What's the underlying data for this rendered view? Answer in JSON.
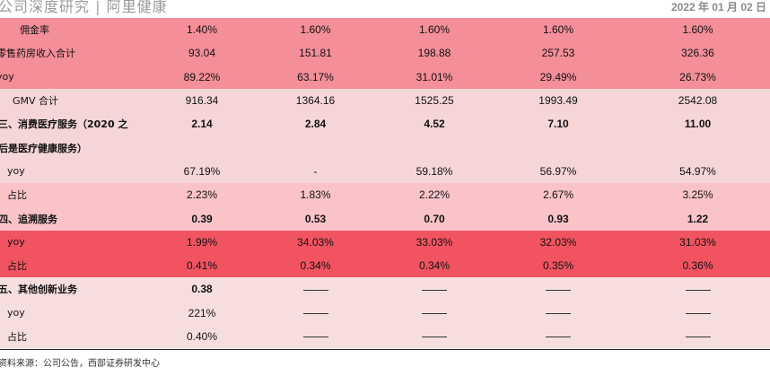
{
  "header": {
    "left": "公司深度研究 | 阿里健康",
    "right": "2022 年 01 月 02 日"
  },
  "table": {
    "rows": [
      {
        "label": "佣金率",
        "indent": 22,
        "style": "a",
        "bold": false,
        "values": [
          "1.40%",
          "1.60%",
          "1.60%",
          "1.60%",
          "1.60%"
        ]
      },
      {
        "label": "零售药房收入合计",
        "indent": -4,
        "style": "a",
        "bold": false,
        "values": [
          "93.04",
          "151.81",
          "198.88",
          "257.53",
          "326.36"
        ]
      },
      {
        "label": "yoy",
        "indent": -4,
        "style": "a",
        "bold": false,
        "values": [
          "89.22%",
          "63.17%",
          "31.01%",
          "29.49%",
          "26.73%"
        ]
      },
      {
        "label": "GMV 合计",
        "indent": 14,
        "style": "b",
        "bold": false,
        "values": [
          "916.34",
          "1364.16",
          "1525.25",
          "1993.49",
          "2542.08"
        ]
      },
      {
        "label": "三、消费医疗服务（2020 之",
        "indent": -2,
        "style": "b",
        "bold": true,
        "values": [
          "2.14",
          "2.84",
          "4.52",
          "7.10",
          "11.00"
        ]
      },
      {
        "label": "后是医疗健康服务）",
        "indent": -2,
        "style": "b",
        "bold": true,
        "values": [
          "",
          "",
          "",
          "",
          ""
        ]
      },
      {
        "label": "yoy",
        "indent": 8,
        "style": "b",
        "bold": false,
        "values": [
          "67.19%",
          "-",
          "59.18%",
          "56.97%",
          "54.97%"
        ]
      },
      {
        "label": "占比",
        "indent": 8,
        "style": "c",
        "bold": false,
        "values": [
          "2.23%",
          "1.83%",
          "2.22%",
          "2.67%",
          "3.25%"
        ]
      },
      {
        "label": "四、追溯服务",
        "indent": -2,
        "style": "c",
        "bold": true,
        "values": [
          "0.39",
          "0.53",
          "0.70",
          "0.93",
          "1.22"
        ]
      },
      {
        "label": "yoy",
        "indent": 8,
        "style": "d",
        "bold": false,
        "values": [
          "1.99%",
          "34.03%",
          "33.03%",
          "32.03%",
          "31.03%"
        ]
      },
      {
        "label": "占比",
        "indent": 8,
        "style": "d",
        "bold": false,
        "values": [
          "0.41%",
          "0.34%",
          "0.34%",
          "0.35%",
          "0.36%"
        ]
      },
      {
        "label": "五、其他创新业务",
        "indent": -2,
        "style": "e",
        "bold": true,
        "values": [
          "0.38",
          "——",
          "——",
          "——",
          "——"
        ]
      },
      {
        "label": "yoy",
        "indent": 8,
        "style": "e",
        "bold": false,
        "values": [
          "221%",
          "——",
          "——",
          "——",
          "——"
        ]
      },
      {
        "label": "占比",
        "indent": 8,
        "style": "e",
        "bold": false,
        "values": [
          "0.40%",
          "——",
          "——",
          "——",
          "——"
        ]
      }
    ]
  },
  "source": "资料来源：公司公告，西部证券研发中心"
}
